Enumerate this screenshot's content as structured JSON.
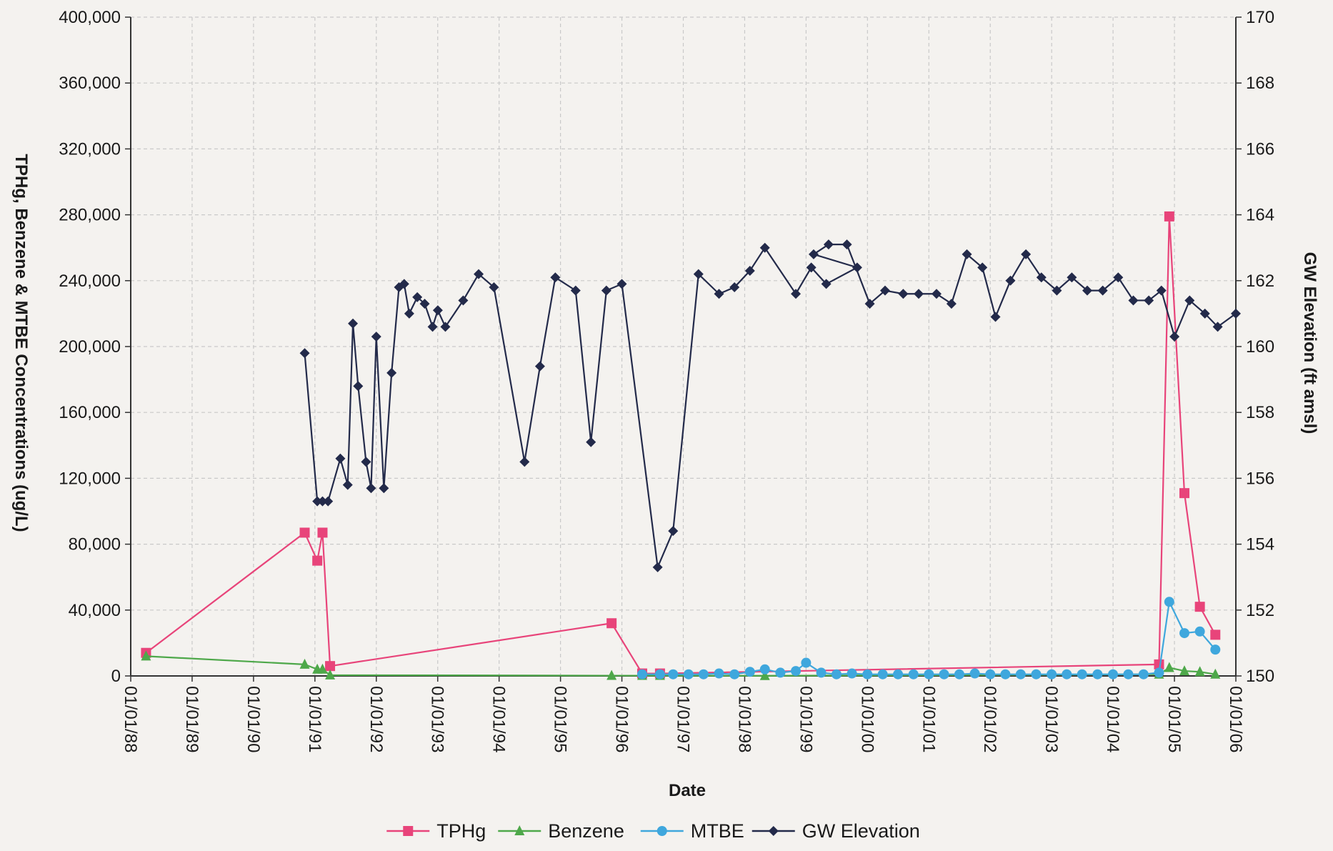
{
  "chart_data": {
    "type": "line",
    "title": "",
    "xlabel": "Date",
    "ylabel_left": "TPHg, Benzene & MTBE Concentrations (ug/L)",
    "ylabel_right": "GW Elevation (ft amsl)",
    "x_ticks": [
      "01/01/88",
      "01/01/89",
      "01/01/90",
      "01/01/91",
      "01/01/92",
      "01/01/93",
      "01/01/94",
      "01/01/95",
      "01/01/96",
      "01/01/97",
      "01/01/98",
      "01/01/99",
      "01/01/00",
      "01/01/01",
      "01/01/02",
      "01/01/03",
      "01/01/04",
      "01/01/05",
      "01/01/06"
    ],
    "xlim": [
      "1988-01-01",
      "2006-01-01"
    ],
    "ylim_left": [
      0,
      400000
    ],
    "left_ticks": [
      "0",
      "40,000",
      "80,000",
      "120,000",
      "160,000",
      "200,000",
      "240,000",
      "280,000",
      "320,000",
      "360,000",
      "400,000"
    ],
    "ylim_right": [
      150,
      170
    ],
    "right_ticks": [
      "150",
      "152",
      "154",
      "156",
      "158",
      "160",
      "162",
      "164",
      "166",
      "168",
      "170"
    ],
    "grid": true,
    "legend_position": "bottom",
    "series": [
      {
        "name": "TPHg",
        "axis": "left",
        "color": "#e8447a",
        "marker": "square",
        "points": [
          [
            "1988-04-01",
            14000
          ],
          [
            "1990-11-01",
            87000
          ],
          [
            "1991-01-15",
            70000
          ],
          [
            "1991-02-15",
            87000
          ],
          [
            "1991-04-01",
            6000
          ],
          [
            "1995-11-01",
            32000
          ],
          [
            "1996-05-01",
            1500
          ],
          [
            "1996-08-15",
            1500
          ],
          [
            "2004-10-01",
            7000
          ],
          [
            "2004-12-01",
            279000
          ],
          [
            "2005-03-01",
            111000
          ],
          [
            "2005-06-01",
            42000
          ],
          [
            "2005-09-01",
            25000
          ]
        ]
      },
      {
        "name": "Benzene",
        "axis": "left",
        "color": "#4ea84a",
        "marker": "triangle",
        "points": [
          [
            "1988-04-01",
            12000
          ],
          [
            "1990-11-01",
            7000
          ],
          [
            "1991-01-15",
            4000
          ],
          [
            "1991-02-15",
            4000
          ],
          [
            "1991-04-01",
            500
          ],
          [
            "1995-11-01",
            200
          ],
          [
            "1996-05-01",
            200
          ],
          [
            "1996-08-15",
            200
          ],
          [
            "1998-05-01",
            100
          ],
          [
            "2004-10-01",
            1000
          ],
          [
            "2004-12-01",
            5000
          ],
          [
            "2005-03-01",
            3000
          ],
          [
            "2005-06-01",
            2500
          ],
          [
            "2005-09-01",
            1000
          ]
        ]
      },
      {
        "name": "MTBE",
        "axis": "left",
        "color": "#3fa7dd",
        "marker": "circle",
        "points": [
          [
            "1996-05-01",
            1000
          ],
          [
            "1996-08-15",
            1000
          ],
          [
            "1996-11-01",
            1000
          ],
          [
            "1997-02-01",
            1000
          ],
          [
            "1997-05-01",
            1000
          ],
          [
            "1997-08-01",
            1500
          ],
          [
            "1997-11-01",
            1000
          ],
          [
            "1998-02-01",
            2500
          ],
          [
            "1998-05-01",
            4000
          ],
          [
            "1998-08-01",
            2000
          ],
          [
            "1998-11-01",
            3000
          ],
          [
            "1999-01-01",
            8000
          ],
          [
            "1999-04-01",
            2000
          ],
          [
            "1999-07-01",
            1000
          ],
          [
            "1999-10-01",
            1500
          ],
          [
            "2000-01-01",
            1000
          ],
          [
            "2000-04-01",
            1000
          ],
          [
            "2000-07-01",
            1000
          ],
          [
            "2000-10-01",
            1000
          ],
          [
            "2001-01-01",
            1000
          ],
          [
            "2001-04-01",
            1000
          ],
          [
            "2001-07-01",
            1000
          ],
          [
            "2001-10-01",
            1500
          ],
          [
            "2002-01-01",
            1000
          ],
          [
            "2002-04-01",
            1000
          ],
          [
            "2002-07-01",
            1000
          ],
          [
            "2002-10-01",
            1000
          ],
          [
            "2003-01-01",
            1000
          ],
          [
            "2003-04-01",
            1000
          ],
          [
            "2003-07-01",
            1000
          ],
          [
            "2003-10-01",
            1000
          ],
          [
            "2004-01-01",
            1000
          ],
          [
            "2004-04-01",
            1000
          ],
          [
            "2004-07-01",
            1000
          ],
          [
            "2004-10-01",
            2000
          ],
          [
            "2004-12-01",
            45000
          ],
          [
            "2005-03-01",
            26000
          ],
          [
            "2005-06-01",
            27000
          ],
          [
            "2005-09-01",
            16000
          ]
        ]
      },
      {
        "name": "GW Elevation",
        "axis": "right",
        "color": "#232a4a",
        "marker": "diamond",
        "points": [
          [
            "1990-11-01",
            159.8
          ],
          [
            "1991-01-15",
            155.3
          ],
          [
            "1991-02-15",
            155.3
          ],
          [
            "1991-03-20",
            155.3
          ],
          [
            "1991-06-01",
            156.6
          ],
          [
            "1991-07-15",
            155.8
          ],
          [
            "1991-08-15",
            160.7
          ],
          [
            "1991-09-15",
            158.8
          ],
          [
            "1991-11-01",
            156.5
          ],
          [
            "1991-12-01",
            155.7
          ],
          [
            "1992-01-01",
            160.3
          ],
          [
            "1992-02-15",
            155.7
          ],
          [
            "1992-04-01",
            159.2
          ],
          [
            "1992-05-15",
            161.8
          ],
          [
            "1992-06-15",
            161.9
          ],
          [
            "1992-07-15",
            161.0
          ],
          [
            "1992-09-01",
            161.5
          ],
          [
            "1992-10-15",
            161.3
          ],
          [
            "1992-12-01",
            160.6
          ],
          [
            "1993-01-01",
            161.1
          ],
          [
            "1993-02-15",
            160.6
          ],
          [
            "1993-06-01",
            161.4
          ],
          [
            "1993-09-01",
            162.2
          ],
          [
            "1993-12-01",
            161.8
          ],
          [
            "1994-06-01",
            156.5
          ],
          [
            "1994-09-01",
            159.4
          ],
          [
            "1994-12-01",
            162.1
          ],
          [
            "1995-04-01",
            161.7
          ],
          [
            "1995-07-01",
            157.1
          ],
          [
            "1995-10-01",
            161.7
          ],
          [
            "1996-01-01",
            161.9
          ],
          [
            "1996-08-01",
            153.3
          ],
          [
            "1996-11-01",
            154.4
          ],
          [
            "1997-04-01",
            162.2
          ],
          [
            "1997-08-01",
            161.6
          ],
          [
            "1997-11-01",
            161.8
          ],
          [
            "1998-02-01",
            162.3
          ],
          [
            "1998-05-01",
            163.0
          ],
          [
            "1998-11-01",
            161.6
          ],
          [
            "1999-02-01",
            162.4
          ],
          [
            "1999-05-01",
            161.9
          ],
          [
            "1999-11-01",
            162.4
          ],
          [
            "1999-02-15",
            162.8
          ],
          [
            "1999-05-15",
            163.1
          ],
          [
            "1999-09-01",
            163.1
          ],
          [
            "2000-01-15",
            161.3
          ],
          [
            "2000-04-15",
            161.7
          ],
          [
            "2000-08-01",
            161.6
          ],
          [
            "2000-11-01",
            161.6
          ],
          [
            "2001-02-15",
            161.6
          ],
          [
            "2001-05-15",
            161.3
          ],
          [
            "2001-08-15",
            162.8
          ],
          [
            "2001-11-15",
            162.4
          ],
          [
            "2002-02-01",
            160.9
          ],
          [
            "2002-05-01",
            162.0
          ],
          [
            "2002-08-01",
            162.8
          ],
          [
            "2002-11-01",
            162.1
          ],
          [
            "2003-02-01",
            161.7
          ],
          [
            "2003-05-01",
            162.1
          ],
          [
            "2003-08-01",
            161.7
          ],
          [
            "2003-11-01",
            161.7
          ],
          [
            "2004-02-01",
            162.1
          ],
          [
            "2004-05-01",
            161.4
          ],
          [
            "2004-08-01",
            161.4
          ],
          [
            "2004-10-15",
            161.7
          ],
          [
            "2005-01-01",
            160.3
          ],
          [
            "2005-04-01",
            161.4
          ],
          [
            "2005-07-01",
            161.0
          ],
          [
            "2005-09-15",
            160.6
          ],
          [
            "2006-01-01",
            161.0
          ]
        ]
      }
    ]
  }
}
